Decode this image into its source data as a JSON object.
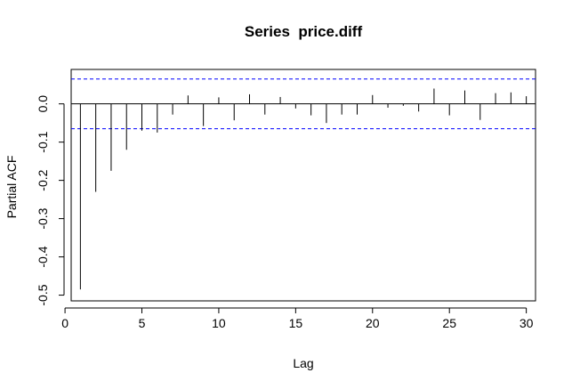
{
  "chart_data": {
    "type": "bar",
    "title": "Series  price.diff",
    "xlabel": "Lag",
    "ylabel": "Partial ACF",
    "xlim": [
      0.4,
      30.6
    ],
    "ylim": [
      -0.515,
      0.09
    ],
    "xticks": [
      0,
      5,
      10,
      15,
      20,
      25,
      30
    ],
    "xtick_labels": [
      "0",
      "5",
      "10",
      "15",
      "20",
      "25",
      "30"
    ],
    "yticks": [
      -0.5,
      -0.4,
      -0.3,
      -0.2,
      -0.1,
      0.0
    ],
    "ytick_labels": [
      "-0.5",
      "-0.4",
      "-0.3",
      "-0.2",
      "-0.1",
      "0.0"
    ],
    "confidence_bound": 0.065,
    "confidence_color": "#0000ff",
    "grid": false,
    "series": [
      {
        "lags": [
          1,
          2,
          3,
          4,
          5,
          6,
          7,
          8,
          9,
          10,
          11,
          12,
          13,
          14,
          15,
          16,
          17,
          18,
          19,
          20,
          21,
          22,
          23,
          24,
          25,
          26,
          27,
          28,
          29,
          30
        ],
        "values": [
          -0.485,
          -0.23,
          -0.175,
          -0.12,
          -0.07,
          -0.075,
          -0.028,
          0.022,
          -0.058,
          0.017,
          -0.043,
          0.025,
          -0.028,
          0.018,
          -0.012,
          -0.03,
          -0.05,
          -0.028,
          -0.028,
          0.023,
          -0.01,
          -0.005,
          -0.02,
          0.04,
          -0.03,
          0.035,
          -0.042,
          0.028,
          0.03,
          0.02
        ]
      }
    ]
  }
}
